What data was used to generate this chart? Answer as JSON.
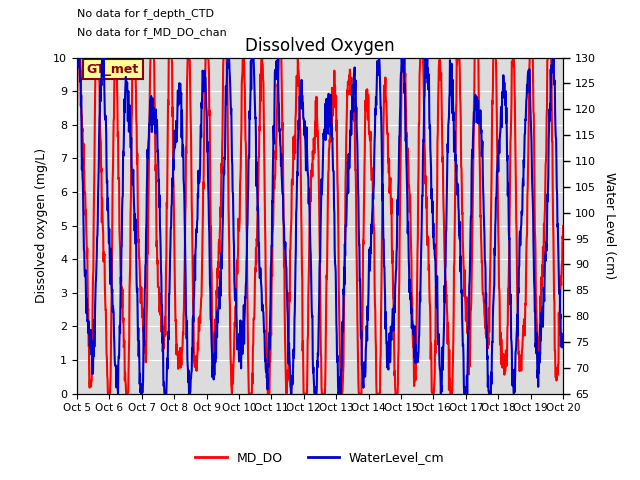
{
  "title": "Dissolved Oxygen",
  "text_top_left": [
    "No data for f_depth_CTD",
    "No data for f_MD_DO_chan"
  ],
  "legend_box_label": "GT_met",
  "xlabel_dates": [
    "Oct 5",
    "Oct 6",
    "Oct 7",
    "Oct 8",
    "Oct 9",
    "Oct 10",
    "Oct 11",
    "Oct 12",
    "Oct 13",
    "Oct 14",
    "Oct 15",
    "Oct 16",
    "Oct 17",
    "Oct 18",
    "Oct 19",
    "Oct 20"
  ],
  "ylabel_left": "Dissolved oxygen (mg/L)",
  "ylabel_right": "Water Level (cm)",
  "ylim_left": [
    0.0,
    10.0
  ],
  "ylim_right": [
    65,
    130
  ],
  "yticks_left": [
    0.0,
    1.0,
    2.0,
    3.0,
    4.0,
    5.0,
    6.0,
    7.0,
    8.0,
    9.0,
    10.0
  ],
  "yticks_right": [
    65,
    70,
    75,
    80,
    85,
    90,
    95,
    100,
    105,
    110,
    115,
    120,
    125,
    130
  ],
  "legend_items": [
    {
      "label": "MD_DO",
      "color": "#FF0000",
      "lw": 1.5
    },
    {
      "label": "WaterLevel_cm",
      "color": "#0000CC",
      "lw": 1.5
    }
  ],
  "plot_bg": "#DCDCDC",
  "seed": 42,
  "n_days": 15,
  "points_per_day": 96
}
